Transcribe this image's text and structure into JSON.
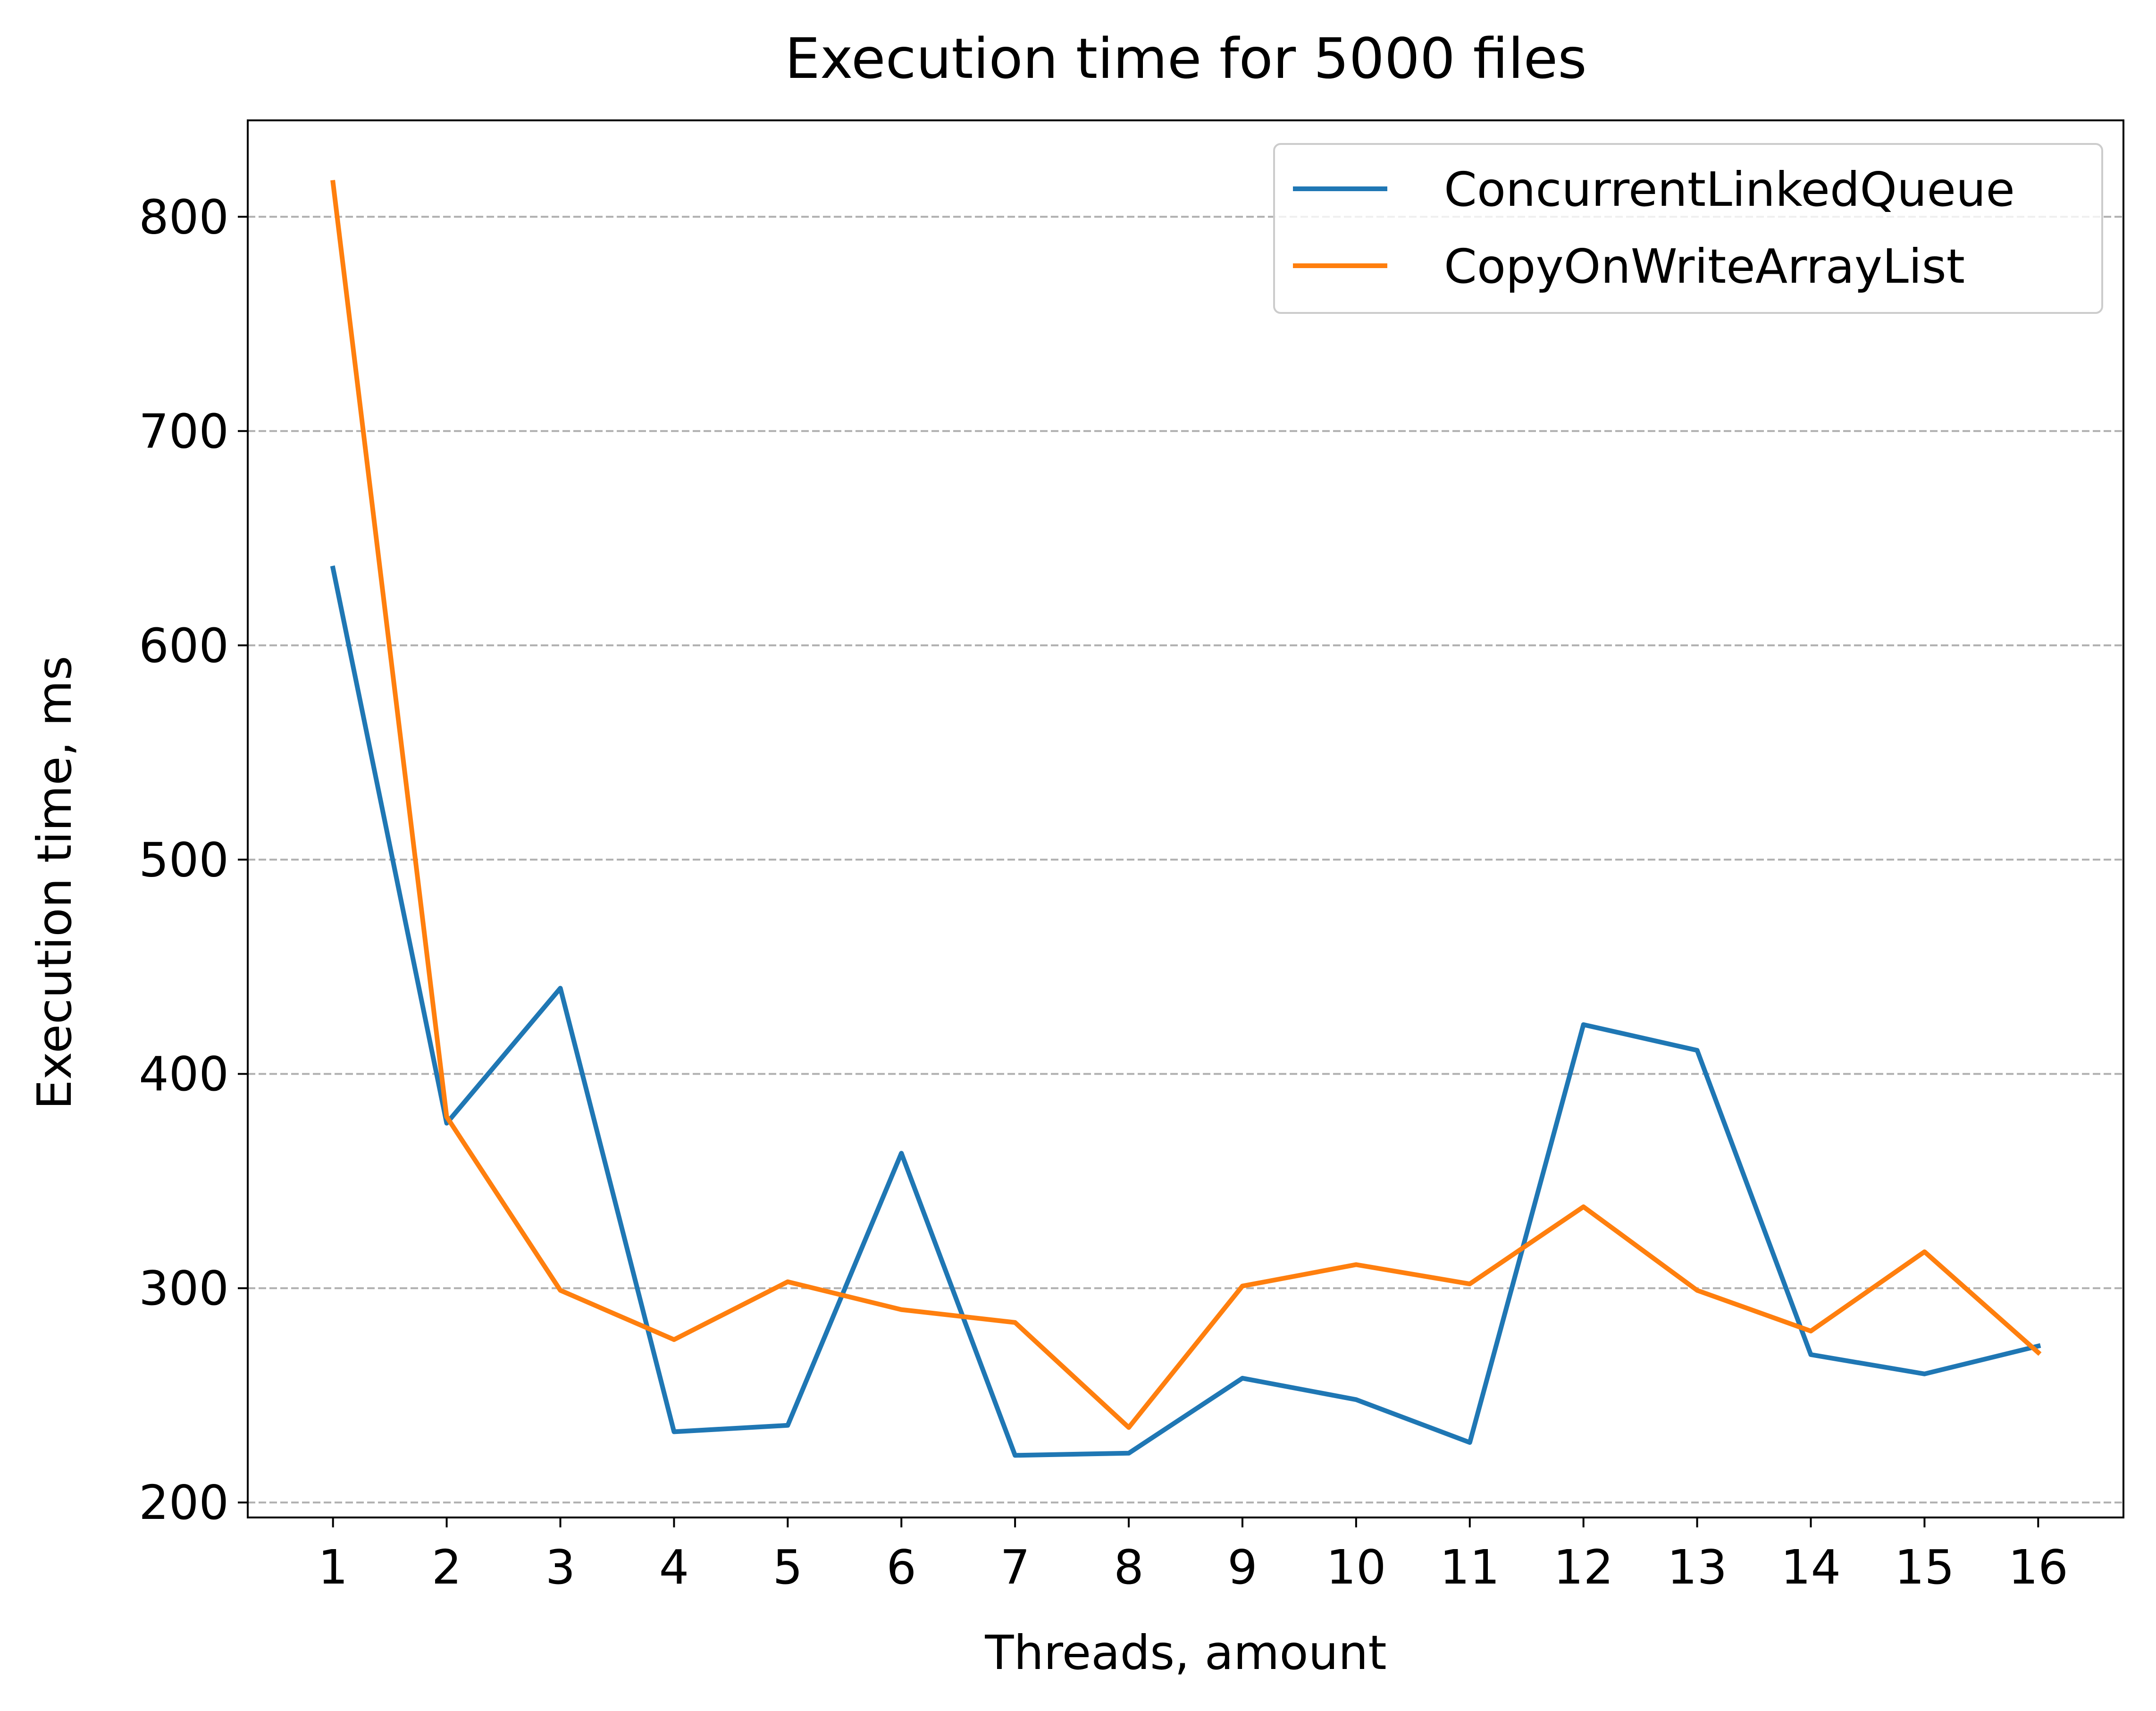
{
  "chart_data": {
    "type": "line",
    "title": "Execution time for 5000 files",
    "xlabel": "Threads, amount",
    "ylabel": "Execution time, ms",
    "x": [
      1,
      2,
      3,
      4,
      5,
      6,
      7,
      8,
      9,
      10,
      11,
      12,
      13,
      14,
      15,
      16
    ],
    "xlim": [
      0.25,
      16.75
    ],
    "ylim": [
      193,
      845
    ],
    "yticks": [
      200,
      300,
      400,
      500,
      600,
      700,
      800
    ],
    "grid": "y-dashed",
    "legend_position": "top-right",
    "series": [
      {
        "name": "ConcurrentLinkedQueue",
        "color": "#1f77b4",
        "values": [
          636,
          377,
          440,
          233,
          236,
          363,
          222,
          223,
          258,
          248,
          228,
          423,
          411,
          269,
          260,
          273
        ]
      },
      {
        "name": "CopyOnWriteArrayList",
        "color": "#ff7f0e",
        "values": [
          816,
          380,
          299,
          276,
          303,
          290,
          284,
          235,
          301,
          311,
          302,
          338,
          299,
          280,
          317,
          270
        ]
      }
    ]
  }
}
